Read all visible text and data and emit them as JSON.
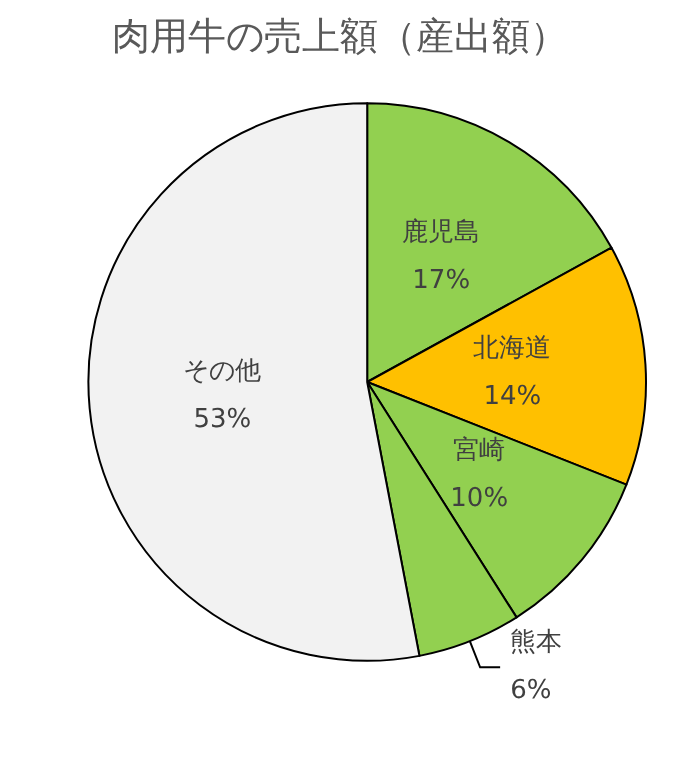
{
  "chart_data": {
    "type": "pie",
    "title": "肉用牛の売上額（産出額）",
    "categories": [
      "鹿児島",
      "北海道",
      "宮崎",
      "熊本",
      "その他"
    ],
    "values": [
      17,
      14,
      10,
      6,
      53
    ],
    "colors": [
      "#92d050",
      "#ffc000",
      "#92d050",
      "#92d050",
      "#f2f2f2"
    ],
    "value_labels": [
      "17%",
      "14%",
      "10%",
      "6%",
      "53%"
    ]
  }
}
